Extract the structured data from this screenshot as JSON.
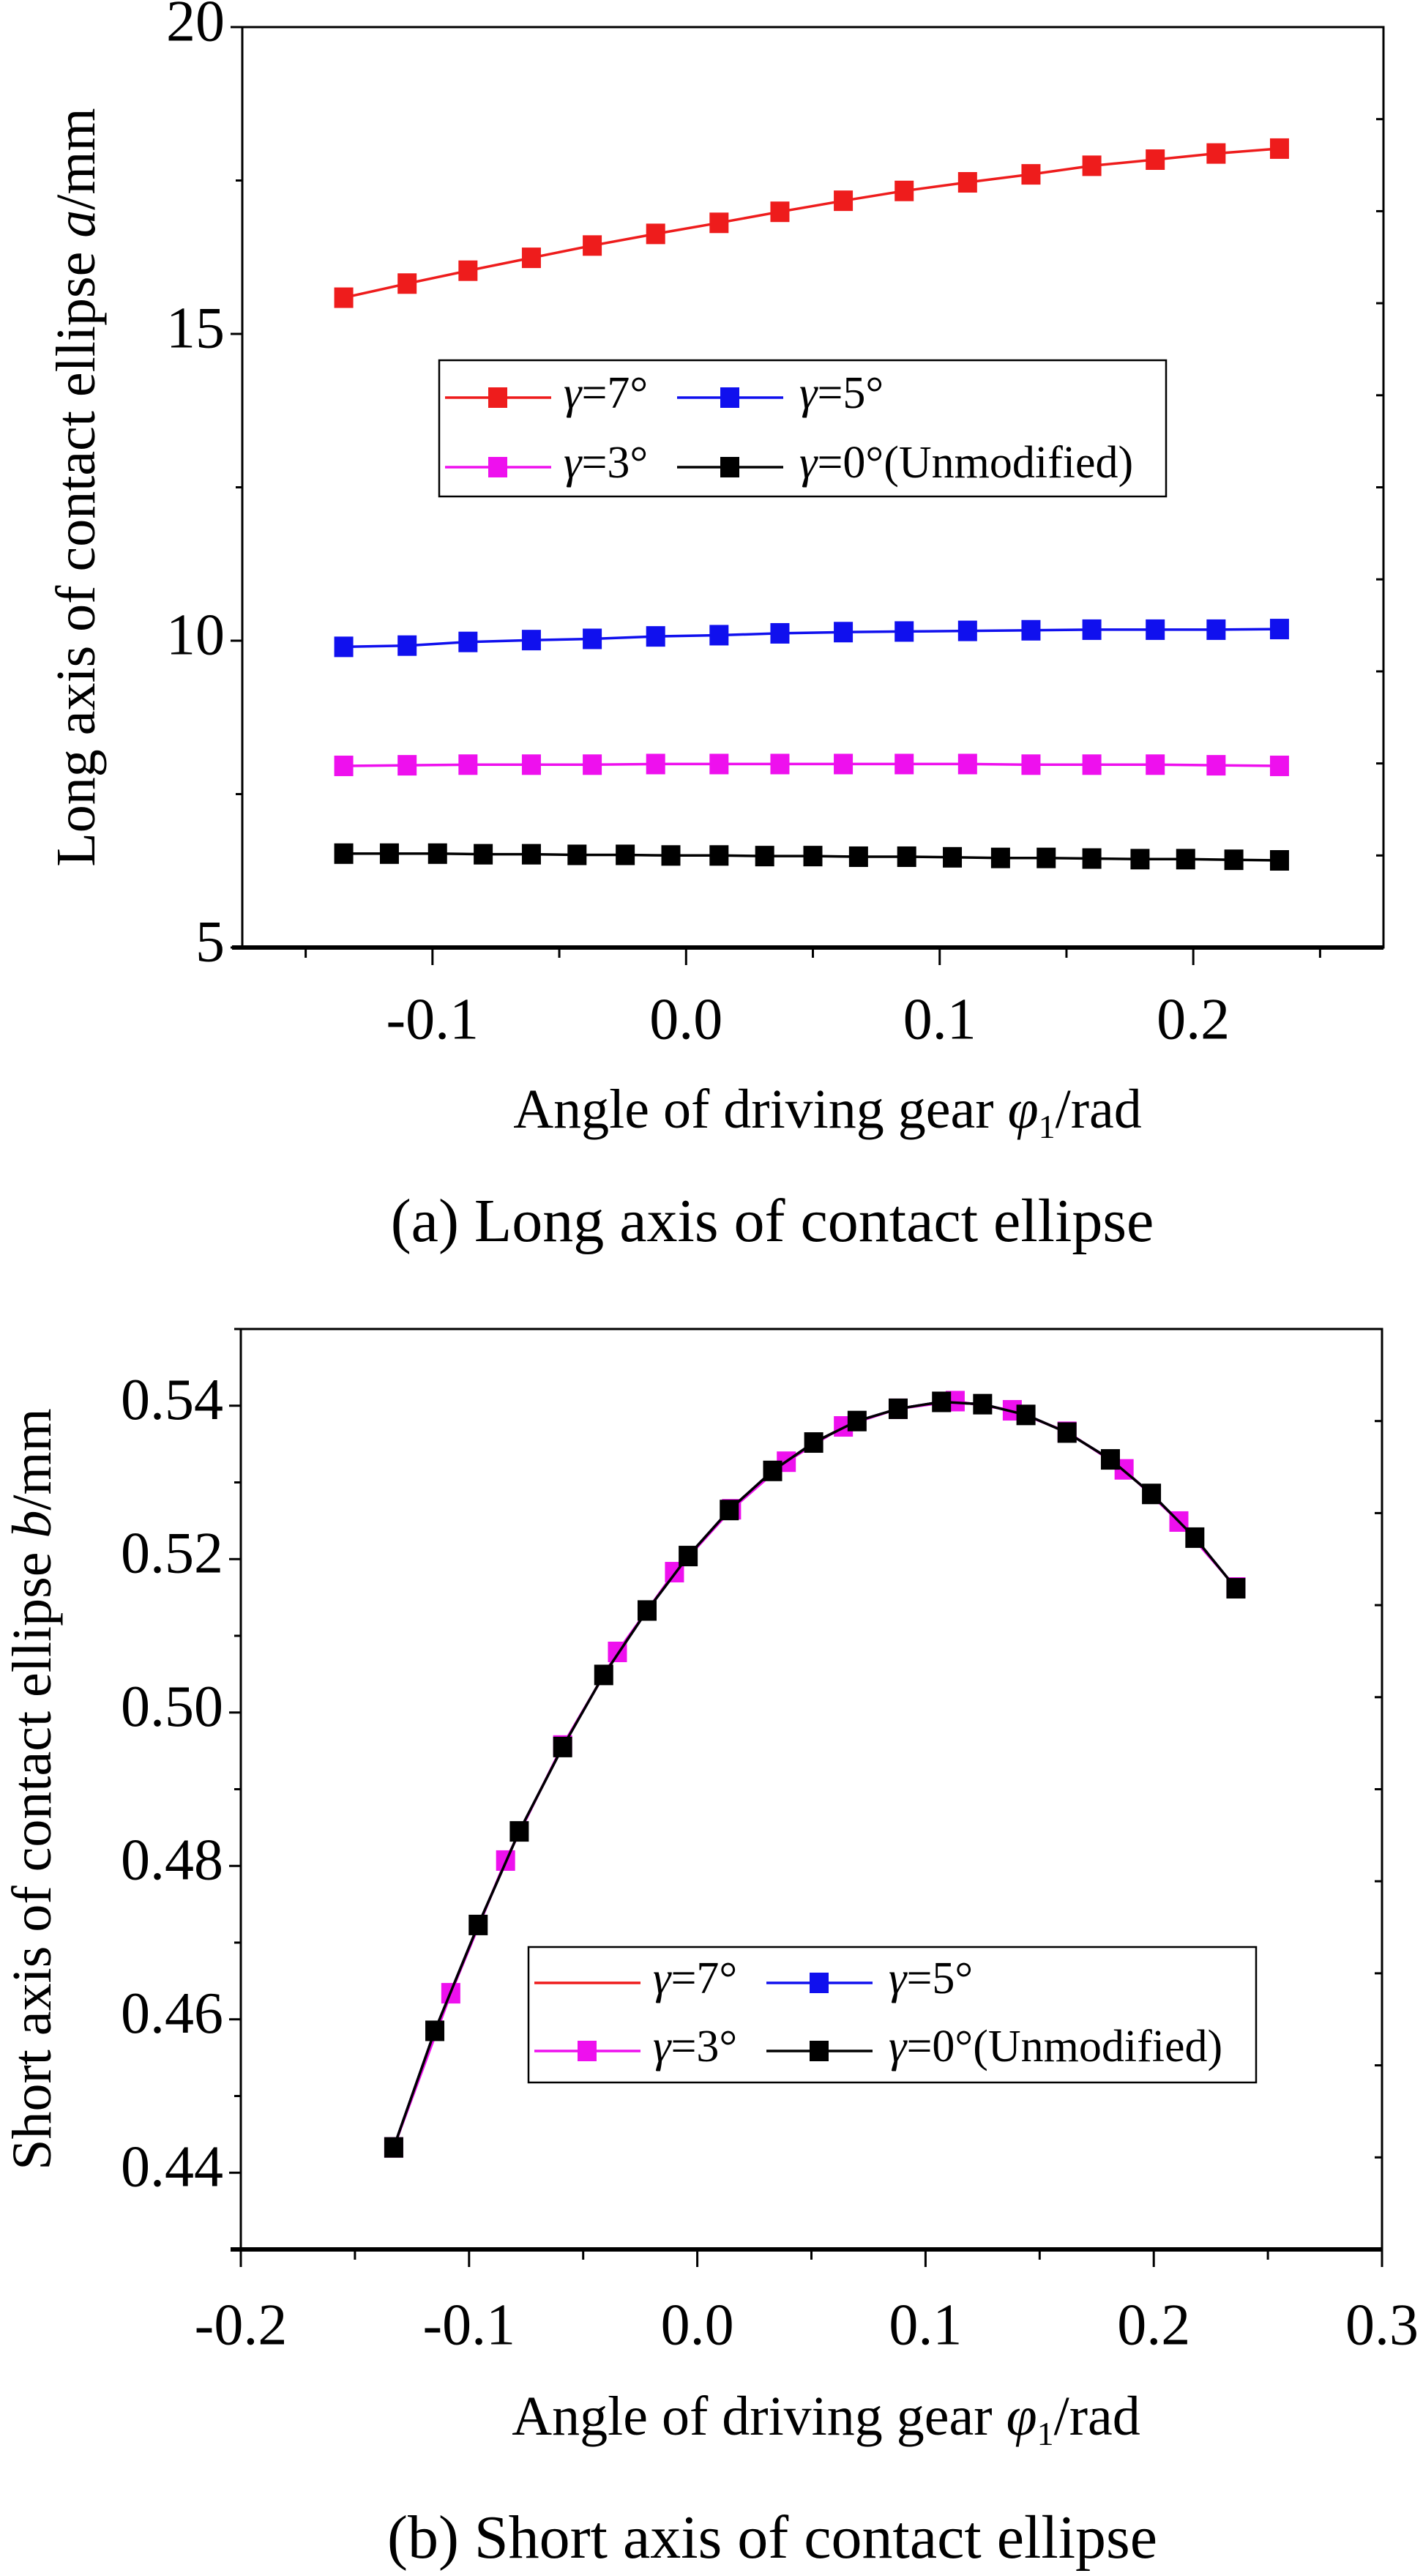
{
  "chart_data": [
    {
      "type": "line",
      "caption": "(a) Long axis of contact ellipse",
      "ylabel": {
        "prefix": "Long axis of contact ellipse ",
        "italic": "a",
        "suffix": "/mm"
      },
      "xlabel": {
        "prefix": "Angle of driving gear ",
        "italic": "φ",
        "sub": "1",
        "suffix": "/rad"
      },
      "xlim": [
        -0.175,
        0.275
      ],
      "ylim": [
        5,
        20
      ],
      "xticks": [
        -0.1,
        0.0,
        0.1,
        0.2
      ],
      "xtick_labels": [
        "-0.1",
        "0.0",
        "0.1",
        "0.2"
      ],
      "yticks": [
        5,
        10,
        15,
        20
      ],
      "ytick_labels": [
        "5",
        "10",
        "15",
        "20"
      ],
      "grid": false,
      "legend_placement": "center",
      "series": [
        {
          "name": "γ=7°",
          "color": "#ee1c1c",
          "marker": true,
          "x": [
            -0.135,
            -0.11,
            -0.086,
            -0.061,
            -0.037,
            -0.012,
            0.013,
            0.037,
            0.062,
            0.086,
            0.111,
            0.136,
            0.16,
            0.185,
            0.209,
            0.234
          ],
          "y": [
            15.59,
            15.82,
            16.03,
            16.24,
            16.44,
            16.63,
            16.81,
            16.99,
            17.17,
            17.33,
            17.47,
            17.6,
            17.74,
            17.84,
            17.94,
            18.02
          ]
        },
        {
          "name": "γ=5°",
          "color": "#1010ee",
          "marker": true,
          "x": [
            -0.135,
            -0.11,
            -0.086,
            -0.061,
            -0.037,
            -0.012,
            0.013,
            0.037,
            0.062,
            0.086,
            0.111,
            0.136,
            0.16,
            0.185,
            0.209,
            0.234
          ],
          "y": [
            9.9,
            9.92,
            9.98,
            10.01,
            10.03,
            10.07,
            10.09,
            10.12,
            10.14,
            10.15,
            10.16,
            10.17,
            10.18,
            10.18,
            10.18,
            10.19
          ]
        },
        {
          "name": "γ=3°",
          "color": "#ee10ee",
          "marker": true,
          "x": [
            -0.135,
            -0.11,
            -0.086,
            -0.061,
            -0.037,
            -0.012,
            0.013,
            0.037,
            0.062,
            0.086,
            0.111,
            0.136,
            0.16,
            0.185,
            0.209,
            0.234
          ],
          "y": [
            7.96,
            7.97,
            7.98,
            7.98,
            7.98,
            7.99,
            7.99,
            7.99,
            7.99,
            7.99,
            7.99,
            7.98,
            7.98,
            7.98,
            7.97,
            7.96
          ]
        },
        {
          "name": "γ=0°(Unmodified)",
          "color": "#000000",
          "marker": true,
          "x": [
            -0.135,
            -0.117,
            -0.098,
            -0.08,
            -0.061,
            -0.043,
            -0.024,
            -0.006,
            0.013,
            0.031,
            0.05,
            0.068,
            0.087,
            0.105,
            0.124,
            0.142,
            0.16,
            0.179,
            0.197,
            0.216,
            0.234
          ],
          "y": [
            6.53,
            6.53,
            6.53,
            6.52,
            6.52,
            6.51,
            6.51,
            6.5,
            6.5,
            6.49,
            6.49,
            6.48,
            6.48,
            6.47,
            6.46,
            6.46,
            6.45,
            6.44,
            6.44,
            6.43,
            6.42
          ]
        }
      ]
    },
    {
      "type": "line",
      "caption": "(b) Short axis of contact ellipse",
      "ylabel": {
        "prefix": "Short axis of contact ellipse ",
        "italic": "b",
        "suffix": "/mm"
      },
      "xlabel": {
        "prefix": "Angle of driving gear ",
        "italic": "φ",
        "sub": "1",
        "suffix": "/rad"
      },
      "xlim": [
        -0.2,
        0.3
      ],
      "ylim": [
        0.43,
        0.55
      ],
      "xticks": [
        -0.2,
        -0.1,
        0.0,
        0.1,
        0.2,
        0.3
      ],
      "xtick_labels": [
        "-0.2",
        "-0.1",
        "0.0",
        "0.1",
        "0.2",
        "0.3"
      ],
      "yticks": [
        0.44,
        0.46,
        0.48,
        0.5,
        0.52,
        0.54
      ],
      "ytick_labels": [
        "0.44",
        "0.46",
        "0.48",
        "0.50",
        "0.52",
        "0.54"
      ],
      "grid": false,
      "legend_placement": "bottom-right",
      "series": [
        {
          "name": "γ=7°",
          "color": "#ee1c1c",
          "marker": false,
          "legend_marker": false,
          "x": [
            -0.133,
            -0.115,
            -0.096,
            -0.078,
            -0.059,
            -0.041,
            -0.022,
            -0.004,
            0.014,
            0.033,
            0.051,
            0.07,
            0.088,
            0.107,
            0.125,
            0.144,
            0.162,
            0.181,
            0.199,
            0.218,
            0.236
          ],
          "y": [
            0.4433,
            0.4585,
            0.4723,
            0.4845,
            0.4955,
            0.5049,
            0.5133,
            0.5204,
            0.5264,
            0.5315,
            0.5352,
            0.538,
            0.5396,
            0.5405,
            0.5402,
            0.5388,
            0.5365,
            0.533,
            0.5285,
            0.5228,
            0.5162
          ]
        },
        {
          "name": "γ=5°",
          "color": "#1010ee",
          "marker": false,
          "legend_marker": true,
          "x": [
            -0.133,
            -0.115,
            -0.096,
            -0.078,
            -0.059,
            -0.041,
            -0.022,
            -0.004,
            0.014,
            0.033,
            0.051,
            0.07,
            0.088,
            0.107,
            0.125,
            0.144,
            0.162,
            0.181,
            0.199,
            0.218,
            0.236
          ],
          "y": [
            0.4433,
            0.4585,
            0.4723,
            0.4845,
            0.4955,
            0.5049,
            0.5133,
            0.5204,
            0.5264,
            0.5315,
            0.5352,
            0.538,
            0.5396,
            0.5405,
            0.5402,
            0.5388,
            0.5365,
            0.533,
            0.5285,
            0.5228,
            0.5162
          ]
        },
        {
          "name": "γ=3°",
          "color": "#ee10ee",
          "marker": true,
          "legend_marker": true,
          "x": [
            -0.133,
            -0.108,
            -0.084,
            -0.059,
            -0.035,
            -0.01,
            0.015,
            0.039,
            0.064,
            0.088,
            0.113,
            0.138,
            0.162,
            0.187,
            0.211,
            0.236
          ],
          "y": [
            0.4433,
            0.4634,
            0.4807,
            0.4957,
            0.5079,
            0.5183,
            0.5265,
            0.5327,
            0.5373,
            0.5396,
            0.5406,
            0.5394,
            0.5366,
            0.5317,
            0.5249,
            0.5163
          ]
        },
        {
          "name": "γ=0°(Unmodified)",
          "color": "#000000",
          "marker": true,
          "legend_marker": true,
          "x": [
            -0.133,
            -0.115,
            -0.096,
            -0.078,
            -0.059,
            -0.041,
            -0.022,
            -0.004,
            0.014,
            0.033,
            0.051,
            0.07,
            0.088,
            0.107,
            0.125,
            0.144,
            0.162,
            0.181,
            0.199,
            0.218,
            0.236
          ],
          "y": [
            0.4433,
            0.4585,
            0.4723,
            0.4845,
            0.4955,
            0.5049,
            0.5133,
            0.5204,
            0.5264,
            0.5315,
            0.5352,
            0.538,
            0.5396,
            0.5405,
            0.5402,
            0.5388,
            0.5365,
            0.533,
            0.5285,
            0.5228,
            0.5162
          ]
        }
      ]
    }
  ]
}
